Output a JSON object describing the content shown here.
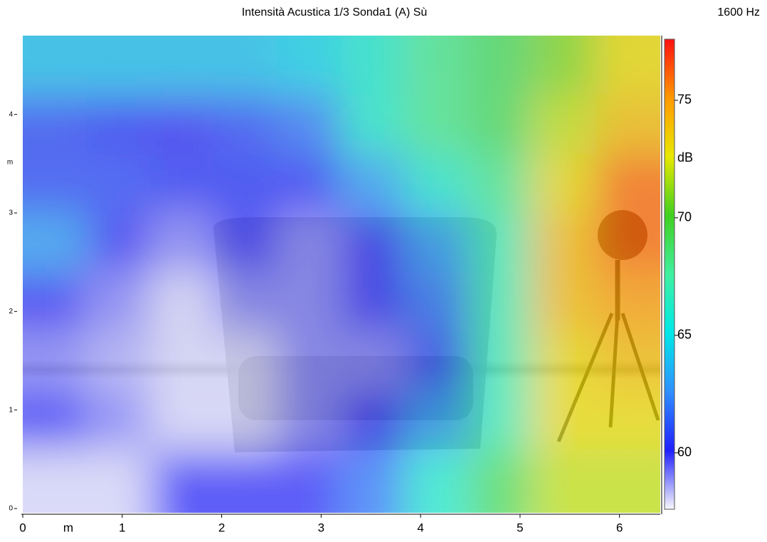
{
  "chart_data": {
    "type": "heatmap",
    "title": "Intensità Acustica 1/3 Sonda1 (A) Sù",
    "subtitle": "1600 Hz",
    "xlabel": "m",
    "ylabel": "m",
    "colorbar_label": "dB",
    "x": [
      0.32,
      0.96,
      1.6,
      2.24,
      2.88,
      3.52,
      4.16,
      4.8,
      5.44,
      6.08
    ],
    "y": [
      4.5,
      3.9,
      3.3,
      2.7,
      2.1,
      1.5,
      0.9,
      0.3
    ],
    "z": [
      [
        64,
        64,
        64,
        64,
        64.5,
        66,
        68,
        69,
        71,
        73
      ],
      [
        61,
        60.5,
        60,
        61,
        62,
        66,
        68,
        69,
        72,
        74
      ],
      [
        61,
        61,
        60.5,
        60.5,
        60.5,
        63,
        66,
        68,
        73,
        76
      ],
      [
        63,
        60,
        59,
        60,
        59,
        60,
        63,
        67,
        74,
        76
      ],
      [
        60,
        59,
        58,
        59,
        59,
        60,
        62,
        67,
        74,
        75
      ],
      [
        59,
        58.5,
        58,
        58,
        59,
        59,
        61,
        67,
        73,
        74
      ],
      [
        60,
        59,
        58,
        58,
        59,
        60,
        63,
        67,
        73,
        73
      ],
      [
        58,
        58,
        60,
        60,
        60,
        62,
        66,
        69,
        72,
        72
      ]
    ],
    "xlim": [
      0,
      6.41
    ],
    "ylim": [
      0,
      4.8
    ],
    "xticks": [
      0,
      1,
      2,
      3,
      4,
      5,
      6
    ],
    "yticks": [
      0,
      1,
      2,
      3,
      4
    ],
    "clim": [
      57.6,
      77.6
    ],
    "cticks": [
      60,
      65,
      70,
      75
    ],
    "colors": [
      "#f8f8ff",
      "#2020ff",
      "#2f8fff",
      "#00e8e8",
      "#40f0a0",
      "#40d020",
      "#e8e800",
      "#ff9900",
      "#ff1010"
    ]
  }
}
